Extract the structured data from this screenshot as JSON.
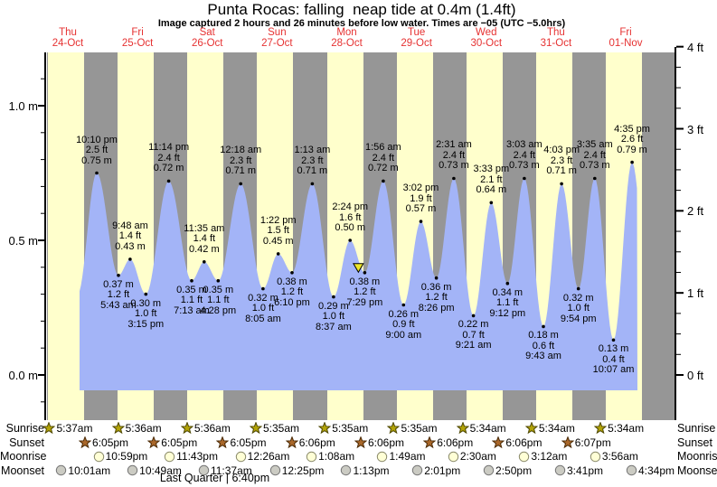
{
  "title": "Punta Rocas: falling  neap tide at 0.4m (1.4ft)",
  "subtitle": "Image captured 2 hours and 26 minutes before low water. Times are −05 (UTC −5.0hrs)",
  "days": [
    {
      "dow": "Thu",
      "date": "24-Oct"
    },
    {
      "dow": "Fri",
      "date": "25-Oct"
    },
    {
      "dow": "Sat",
      "date": "26-Oct"
    },
    {
      "dow": "Sun",
      "date": "27-Oct"
    },
    {
      "dow": "Mon",
      "date": "28-Oct"
    },
    {
      "dow": "Tue",
      "date": "29-Oct"
    },
    {
      "dow": "Wed",
      "date": "30-Oct"
    },
    {
      "dow": "Thu",
      "date": "31-Oct"
    },
    {
      "dow": "Fri",
      "date": "01-Nov"
    }
  ],
  "axes": {
    "left_ticks": [
      {
        "label": "1.0 m",
        "value": 1.0
      },
      {
        "label": "0.5 m",
        "value": 0.5
      },
      {
        "label": "0.0 m",
        "value": 0.0
      }
    ],
    "right_ticks": [
      {
        "label": "4 ft",
        "value": 4
      },
      {
        "label": "3 ft",
        "value": 3
      },
      {
        "label": "2 ft",
        "value": 2
      },
      {
        "label": "1 ft",
        "value": 1
      },
      {
        "label": "0 ft",
        "value": 0
      }
    ]
  },
  "chart_data": {
    "type": "area",
    "title": "Punta Rocas tide curve, Thu 24-Oct to Fri 01-Nov",
    "ylabel_left": "meters",
    "ylabel_right": "feet",
    "y_range_left_m": [
      -0.17,
      1.37
    ],
    "y_range_right_ft": [
      0,
      4
    ],
    "grid": false,
    "legend": "none",
    "tide_events": [
      {
        "day": "Thu 24-Oct",
        "type": "high",
        "time": "10:10 pm",
        "ft": "2.5 ft",
        "m": "0.75 m",
        "t": 22.167,
        "h": 0.75
      },
      {
        "day": "Fri 25-Oct",
        "type": "low",
        "time": "5:43 am",
        "ft": "1.2 ft",
        "m": "0.37 m",
        "t": 29.717,
        "h": 0.37
      },
      {
        "day": "Fri 25-Oct",
        "type": "high",
        "time": "9:48 am",
        "ft": "1.4 ft",
        "m": "0.43 m",
        "t": 33.8,
        "h": 0.43
      },
      {
        "day": "Fri 25-Oct",
        "type": "low",
        "time": "3:15 pm",
        "ft": "1.0 ft",
        "m": "0.30 m",
        "t": 39.25,
        "h": 0.3
      },
      {
        "day": "Fri 25-Oct",
        "type": "high",
        "time": "11:14 pm",
        "ft": "2.4 ft",
        "m": "0.72 m",
        "t": 47.233,
        "h": 0.72
      },
      {
        "day": "Sat 26-Oct",
        "type": "low",
        "time": "7:13 am",
        "ft": "1.1 ft",
        "m": "0.35 m",
        "t": 55.217,
        "h": 0.35
      },
      {
        "day": "Sat 26-Oct",
        "type": "high",
        "time": "11:35 am",
        "ft": "1.4 ft",
        "m": "0.42 m",
        "t": 59.583,
        "h": 0.42
      },
      {
        "day": "Sat 26-Oct",
        "type": "low",
        "time": "4:28 pm",
        "ft": "1.1 ft",
        "m": "0.35 m",
        "t": 64.467,
        "h": 0.35
      },
      {
        "day": "Sun 27-Oct",
        "type": "high",
        "time": "12:18 am",
        "ft": "2.3 ft",
        "m": "0.71 m",
        "t": 72.3,
        "h": 0.71
      },
      {
        "day": "Sun 27-Oct",
        "type": "low",
        "time": "8:05 am",
        "ft": "1.0 ft",
        "m": "0.32 m",
        "t": 80.083,
        "h": 0.32
      },
      {
        "day": "Sun 27-Oct",
        "type": "high",
        "time": "1:22 pm",
        "ft": "1.5 ft",
        "m": "0.45 m",
        "t": 85.367,
        "h": 0.45
      },
      {
        "day": "Sun 27-Oct",
        "type": "low",
        "time": "6:10 pm",
        "ft": "1.2 ft",
        "m": "0.38 m",
        "t": 90.167,
        "h": 0.38
      },
      {
        "day": "Mon 28-Oct",
        "type": "high",
        "time": "1:13 am",
        "ft": "2.3 ft",
        "m": "0.71 m",
        "t": 97.217,
        "h": 0.71
      },
      {
        "day": "Mon 28-Oct",
        "type": "low",
        "time": "8:37 am",
        "ft": "1.0 ft",
        "m": "0.29 m",
        "t": 104.617,
        "h": 0.29
      },
      {
        "day": "Mon 28-Oct",
        "type": "high",
        "time": "2:24 pm",
        "ft": "1.6 ft",
        "m": "0.50 m",
        "t": 110.4,
        "h": 0.5
      },
      {
        "day": "Mon 28-Oct",
        "type": "low",
        "time": "7:29 pm",
        "ft": "1.2 ft",
        "m": "0.38 m",
        "t": 115.483,
        "h": 0.38,
        "marker": true
      },
      {
        "day": "Tue 29-Oct",
        "type": "high",
        "time": "1:56 am",
        "ft": "2.4 ft",
        "m": "0.72 m",
        "t": 121.933,
        "h": 0.72
      },
      {
        "day": "Tue 29-Oct",
        "type": "low",
        "time": "9:00 am",
        "ft": "0.9 ft",
        "m": "0.26 m",
        "t": 129.0,
        "h": 0.26
      },
      {
        "day": "Tue 29-Oct",
        "type": "high",
        "time": "3:02 pm",
        "ft": "1.9 ft",
        "m": "0.57 m",
        "t": 135.033,
        "h": 0.57
      },
      {
        "day": "Tue 29-Oct",
        "type": "low",
        "time": "8:26 pm",
        "ft": "1.2 ft",
        "m": "0.36 m",
        "t": 140.433,
        "h": 0.36
      },
      {
        "day": "Wed 30-Oct",
        "type": "high",
        "time": "2:31 am",
        "ft": "2.4 ft",
        "m": "0.73 m",
        "t": 146.517,
        "h": 0.73
      },
      {
        "day": "Wed 30-Oct",
        "type": "low",
        "time": "9:21 am",
        "ft": "0.7 ft",
        "m": "0.22 m",
        "t": 153.35,
        "h": 0.22
      },
      {
        "day": "Wed 30-Oct",
        "type": "high",
        "time": "3:33 pm",
        "ft": "2.1 ft",
        "m": "0.64 m",
        "t": 159.55,
        "h": 0.64
      },
      {
        "day": "Wed 30-Oct",
        "type": "low",
        "time": "9:12 pm",
        "ft": "1.1 ft",
        "m": "0.34 m",
        "t": 165.2,
        "h": 0.34
      },
      {
        "day": "Thu 31-Oct",
        "type": "high",
        "time": "3:03 am",
        "ft": "2.4 ft",
        "m": "0.73 m",
        "t": 171.05,
        "h": 0.73
      },
      {
        "day": "Thu 31-Oct",
        "type": "low",
        "time": "9:43 am",
        "ft": "0.6 ft",
        "m": "0.18 m",
        "t": 177.717,
        "h": 0.18
      },
      {
        "day": "Thu 31-Oct",
        "type": "high",
        "time": "4:03 pm",
        "ft": "2.3 ft",
        "m": "0.71 m",
        "t": 184.05,
        "h": 0.71
      },
      {
        "day": "Thu 31-Oct",
        "type": "low",
        "time": "9:54 pm",
        "ft": "1.0 ft",
        "m": "0.32 m",
        "t": 189.9,
        "h": 0.32
      },
      {
        "day": "Fri 01-Nov",
        "type": "high",
        "time": "3:35 am",
        "ft": "2.4 ft",
        "m": "0.73 m",
        "t": 195.583,
        "h": 0.73
      },
      {
        "day": "Fri 01-Nov",
        "type": "low",
        "time": "10:07 am",
        "ft": "0.4 ft",
        "m": "0.13 m",
        "t": 202.117,
        "h": 0.13
      },
      {
        "day": "Fri 01-Nov",
        "type": "high",
        "time": "4:35 pm",
        "ft": "2.6 ft",
        "m": "0.79 m",
        "t": 208.583,
        "h": 0.79
      }
    ],
    "curve_phantom_points": [
      {
        "t": 15.5,
        "h": 0.3
      },
      {
        "t": 214.75,
        "h": 0.25
      }
    ]
  },
  "astro": {
    "rows": [
      {
        "label": "Sunrise",
        "icon": "sunrise-star-icon",
        "shape": "star",
        "fill": "#b2a307",
        "stroke": "#4c4600",
        "events": [
          {
            "time": "5:37am",
            "t": 5.617
          },
          {
            "time": "5:36am",
            "t": 29.6
          },
          {
            "time": "5:36am",
            "t": 53.6
          },
          {
            "time": "5:35am",
            "t": 77.583
          },
          {
            "time": "5:35am",
            "t": 101.583
          },
          {
            "time": "5:35am",
            "t": 125.583
          },
          {
            "time": "5:34am",
            "t": 149.567
          },
          {
            "time": "5:34am",
            "t": 173.567
          },
          {
            "time": "5:34am",
            "t": 197.567
          }
        ]
      },
      {
        "label": "Sunset",
        "icon": "sunset-star-icon",
        "shape": "star",
        "fill": "#a9672a",
        "stroke": "#4a2a05",
        "events": [
          {
            "time": "6:05pm",
            "t": 18.083
          },
          {
            "time": "6:05pm",
            "t": 42.083
          },
          {
            "time": "6:05pm",
            "t": 66.083
          },
          {
            "time": "6:06pm",
            "t": 90.1
          },
          {
            "time": "6:06pm",
            "t": 114.1
          },
          {
            "time": "6:06pm",
            "t": 138.1
          },
          {
            "time": "6:06pm",
            "t": 162.1
          },
          {
            "time": "6:07pm",
            "t": 186.117
          }
        ]
      },
      {
        "label": "Moonrise",
        "icon": "moonrise-icon",
        "shape": "circle",
        "fill": "#ffffd6",
        "stroke": "#8a8a6a",
        "events": [
          {
            "time": "10:59pm",
            "t": 22.983
          },
          {
            "time": "11:43pm",
            "t": 47.717
          },
          {
            "time": "12:26am",
            "t": 72.433
          },
          {
            "time": "1:08am",
            "t": 97.133
          },
          {
            "time": "1:49am",
            "t": 121.817
          },
          {
            "time": "2:30am",
            "t": 146.5
          },
          {
            "time": "3:12am",
            "t": 171.2
          },
          {
            "time": "3:56am",
            "t": 195.933
          }
        ]
      },
      {
        "label": "Moonset",
        "icon": "moonset-icon",
        "shape": "circle",
        "fill": "#cbcbc3",
        "stroke": "#767676",
        "events": [
          {
            "time": "10:01am",
            "t": 10.017
          },
          {
            "time": "10:49am",
            "t": 34.817
          },
          {
            "time": "11:37am",
            "t": 59.617
          },
          {
            "time": "12:25pm",
            "t": 84.417
          },
          {
            "time": "1:13pm",
            "t": 109.217
          },
          {
            "time": "2:01pm",
            "t": 134.017
          },
          {
            "time": "2:50pm",
            "t": 158.833
          },
          {
            "time": "3:41pm",
            "t": 183.683
          },
          {
            "time": "4:34pm",
            "t": 208.567
          }
        ]
      }
    ],
    "moon_phase": "Last Quarter | 6:40pm"
  },
  "colors": {
    "daylight_band": "#ffffcc",
    "night_band": "#969696",
    "tide_area": "#a3b4f7",
    "day_label": "#e63232",
    "marker_fill": "#ede629",
    "marker_stroke": "#000000",
    "axis": "#000000"
  }
}
